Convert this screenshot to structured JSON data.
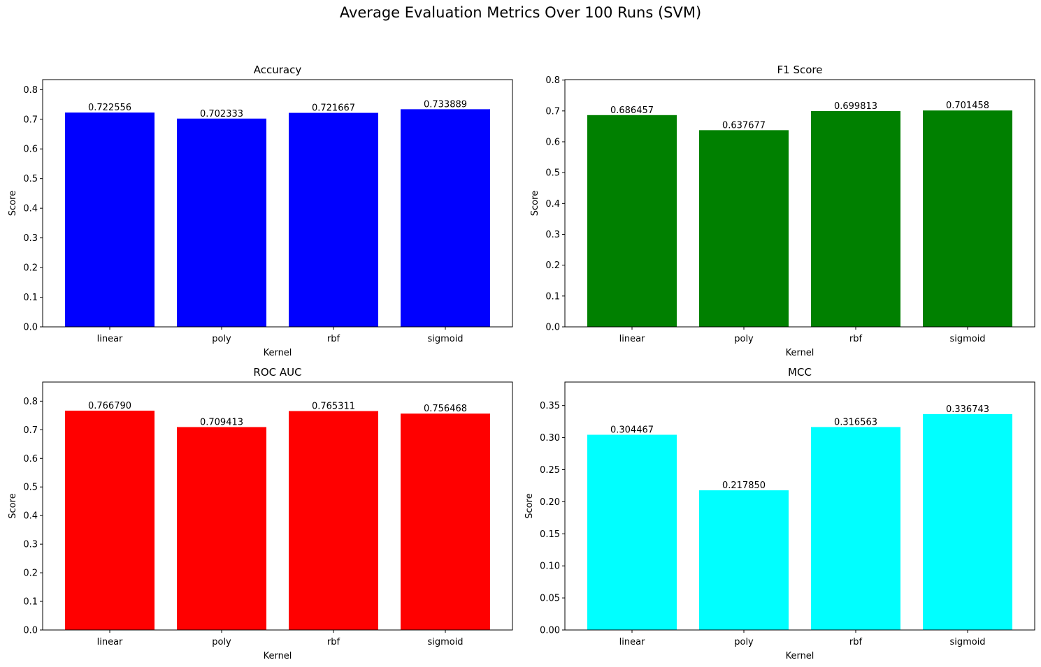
{
  "figure": {
    "title": "Average Evaluation Metrics Over 100 Runs (SVM)"
  },
  "chart_data": [
    {
      "type": "bar",
      "title": "Accuracy",
      "xlabel": "Kernel",
      "ylabel": "Score",
      "categories": [
        "linear",
        "poly",
        "rbf",
        "sigmoid"
      ],
      "values": [
        0.722556,
        0.702333,
        0.721667,
        0.733889
      ],
      "value_labels": [
        "0.722556",
        "0.702333",
        "0.721667",
        "0.733889"
      ],
      "ylim": [
        0,
        0.8337
      ],
      "yticks": [
        "0.0",
        "0.1",
        "0.2",
        "0.3",
        "0.4",
        "0.5",
        "0.6",
        "0.7",
        "0.8"
      ],
      "ytick_values": [
        0,
        0.1,
        0.2,
        0.3,
        0.4,
        0.5,
        0.6,
        0.7,
        0.8
      ],
      "color": "#0000ff",
      "grid": false
    },
    {
      "type": "bar",
      "title": "F1 Score",
      "xlabel": "Kernel",
      "ylabel": "Score",
      "categories": [
        "linear",
        "poly",
        "rbf",
        "sigmoid"
      ],
      "values": [
        0.686457,
        0.637677,
        0.699813,
        0.701458
      ],
      "value_labels": [
        "0.686457",
        "0.637677",
        "0.699813",
        "0.701458"
      ],
      "ylim": [
        0,
        0.8015
      ],
      "yticks": [
        "0.0",
        "0.1",
        "0.2",
        "0.3",
        "0.4",
        "0.5",
        "0.6",
        "0.7",
        "0.8"
      ],
      "ytick_values": [
        0,
        0.1,
        0.2,
        0.3,
        0.4,
        0.5,
        0.6,
        0.7,
        0.8
      ],
      "color": "#008000",
      "grid": false
    },
    {
      "type": "bar",
      "title": "ROC AUC",
      "xlabel": "Kernel",
      "ylabel": "Score",
      "categories": [
        "linear",
        "poly",
        "rbf",
        "sigmoid"
      ],
      "values": [
        0.76679,
        0.709413,
        0.765311,
        0.756468
      ],
      "value_labels": [
        "0.766790",
        "0.709413",
        "0.765311",
        "0.756468"
      ],
      "ylim": [
        0,
        0.8668
      ],
      "yticks": [
        "0.0",
        "0.1",
        "0.2",
        "0.3",
        "0.4",
        "0.5",
        "0.6",
        "0.7",
        "0.8"
      ],
      "ytick_values": [
        0,
        0.1,
        0.2,
        0.3,
        0.4,
        0.5,
        0.6,
        0.7,
        0.8
      ],
      "color": "#ff0000",
      "grid": false
    },
    {
      "type": "bar",
      "title": "MCC",
      "xlabel": "Kernel",
      "ylabel": "Score",
      "categories": [
        "linear",
        "poly",
        "rbf",
        "sigmoid"
      ],
      "values": [
        0.304467,
        0.21785,
        0.316563,
        0.336743
      ],
      "value_labels": [
        "0.304467",
        "0.217850",
        "0.316563",
        "0.336743"
      ],
      "ylim": [
        0,
        0.3867
      ],
      "yticks": [
        "0.00",
        "0.05",
        "0.10",
        "0.15",
        "0.20",
        "0.25",
        "0.30",
        "0.35"
      ],
      "ytick_values": [
        0,
        0.05,
        0.1,
        0.15,
        0.2,
        0.25,
        0.3,
        0.35
      ],
      "color": "#00ffff",
      "grid": false
    }
  ]
}
